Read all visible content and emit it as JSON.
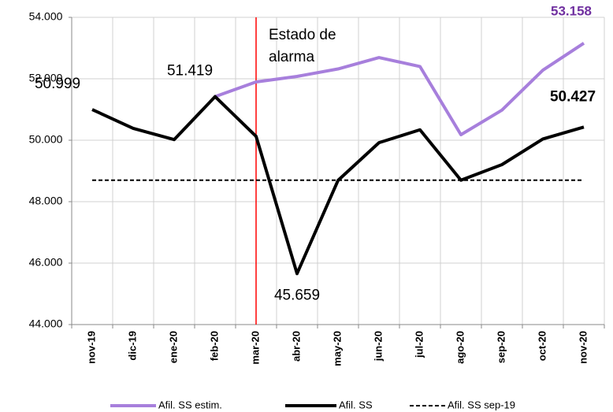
{
  "chart_data": {
    "type": "line",
    "categories": [
      "nov-19",
      "dic-19",
      "ene-20",
      "feb-20",
      "mar-20",
      "abr-20",
      "may-20",
      "jun-20",
      "jul-20",
      "ago-20",
      "sep-20",
      "oct-20",
      "nov-20"
    ],
    "series": [
      {
        "name": "Afil. SS estim.",
        "color": "#a77fdc",
        "width": 4,
        "dash": false,
        "values": [
          null,
          null,
          null,
          51419,
          51897,
          52077,
          52320,
          52690,
          52400,
          50180,
          50980,
          52280,
          53158
        ],
        "value_labels": [
          null,
          null,
          null,
          null,
          null,
          null,
          null,
          null,
          null,
          null,
          null,
          null,
          "53.158"
        ],
        "label_bold": true
      },
      {
        "name": "Afil. SS",
        "color": "#000000",
        "width": 4,
        "dash": false,
        "values": [
          50999,
          50385,
          50020,
          51419,
          50128,
          45659,
          48692,
          49920,
          50340,
          48700,
          49205,
          50040,
          50427
        ],
        "value_labels": [
          "50.999",
          null,
          null,
          "51.419",
          null,
          "45.659",
          null,
          null,
          null,
          null,
          null,
          null,
          "50.427"
        ],
        "label_bold": false
      },
      {
        "name": "Afil. SS sep-19",
        "color": "#000000",
        "width": 2,
        "dash": true,
        "values": [
          48700,
          48700,
          48700,
          48700,
          48700,
          48700,
          48700,
          48700,
          48700,
          48700,
          48700,
          48700,
          48700
        ]
      }
    ],
    "ylim": [
      44000,
      54000
    ],
    "yticks": [
      {
        "value": 44000,
        "label": "44.000"
      },
      {
        "value": 46000,
        "label": "46.000"
      },
      {
        "value": 48000,
        "label": "48.000"
      },
      {
        "value": 50000,
        "label": "50.000"
      },
      {
        "value": 52000,
        "label": "52.000"
      },
      {
        "value": 54000,
        "label": "54.000"
      }
    ],
    "grid": true,
    "annotation": {
      "lines": [
        "Estado de",
        "alarma"
      ],
      "x": "mar-20",
      "color": "#ff0000"
    },
    "legend": "bottom"
  }
}
